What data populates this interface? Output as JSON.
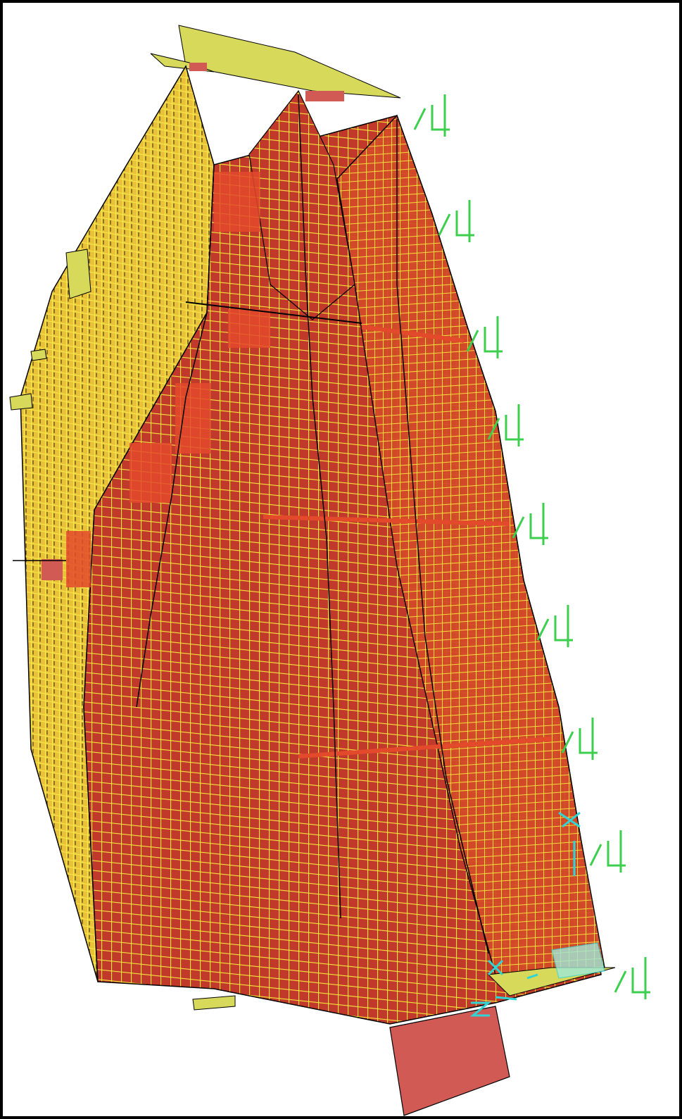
{
  "viewport": {
    "background_color": "#ffffff",
    "border_color": "#000000"
  },
  "model": {
    "shell_fill_color": "#c0392b",
    "shell_fill_light_color": "#e8502e",
    "mesh_color": "#f5e63a",
    "edge_color": "#000000",
    "slab_color": "#d6d95a",
    "highlight_color": "#e34a2c",
    "base_block_color": "#d15a55"
  },
  "supports": {
    "color": "#3ccf4e",
    "label": "/4",
    "count": 9
  },
  "axes": {
    "color": "#2fd4d4",
    "labels": [
      "X",
      "Y",
      "Z"
    ]
  }
}
